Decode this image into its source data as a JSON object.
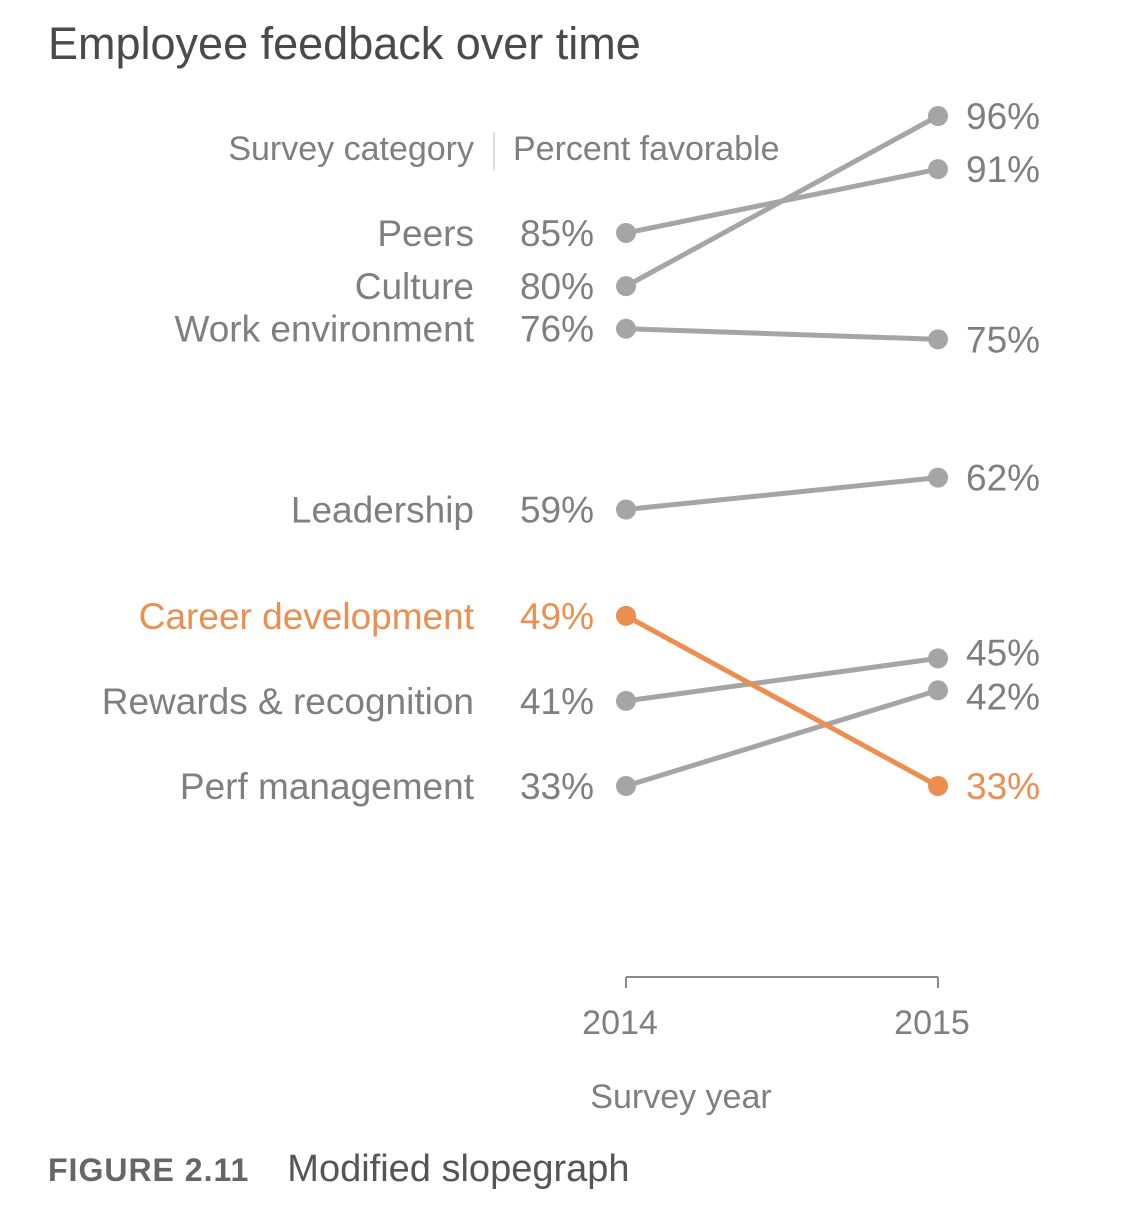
{
  "chart_data": {
    "type": "line",
    "title": "Employee feedback over time",
    "category_header": "Survey category",
    "value_header": "Percent favorable",
    "xlabel": "Survey year",
    "ylabel": "",
    "x": [
      "2014",
      "2015"
    ],
    "series": [
      {
        "name": "Peers",
        "values": [
          85,
          91
        ],
        "labels": [
          "85%",
          "91%"
        ],
        "highlight": false
      },
      {
        "name": "Culture",
        "values": [
          80,
          96
        ],
        "labels": [
          "80%",
          "96%"
        ],
        "highlight": false
      },
      {
        "name": "Work environment",
        "values": [
          76,
          75
        ],
        "labels": [
          "76%",
          "75%"
        ],
        "highlight": false
      },
      {
        "name": "Leadership",
        "values": [
          59,
          62
        ],
        "labels": [
          "59%",
          "62%"
        ],
        "highlight": false
      },
      {
        "name": "Career development",
        "values": [
          49,
          33
        ],
        "labels": [
          "49%",
          "33%"
        ],
        "highlight": true
      },
      {
        "name": "Rewards & recognition",
        "values": [
          41,
          45
        ],
        "labels": [
          "41%",
          "45%"
        ],
        "highlight": false
      },
      {
        "name": "Perf management",
        "values": [
          33,
          42
        ],
        "labels": [
          "33%",
          "42%"
        ],
        "highlight": false
      }
    ],
    "ylim": [
      33,
      96
    ],
    "grid": false,
    "legend": "none",
    "colors": {
      "default": "#a5a5a5",
      "highlight": "#ec8e4f",
      "text": "#7f7f7f",
      "axis": "#8a8a8a"
    }
  },
  "caption": {
    "figure_number": "FIGURE 2.11",
    "text": "Modified slopegraph"
  }
}
